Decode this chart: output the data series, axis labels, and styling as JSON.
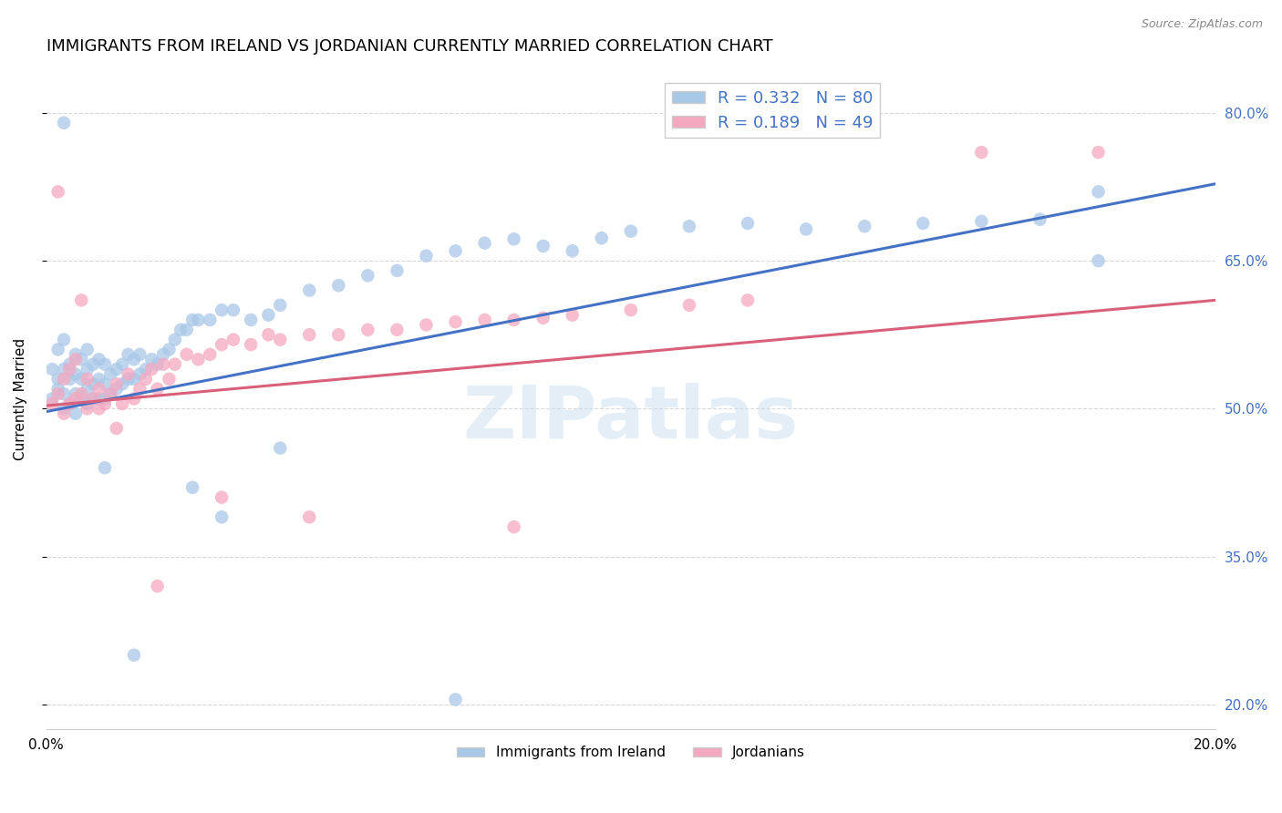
{
  "title": "IMMIGRANTS FROM IRELAND VS JORDANIAN CURRENTLY MARRIED CORRELATION CHART",
  "source": "Source: ZipAtlas.com",
  "ylabel": "Currently Married",
  "ytick_labels": [
    "20.0%",
    "35.0%",
    "50.0%",
    "65.0%",
    "80.0%"
  ],
  "ytick_values": [
    0.2,
    0.35,
    0.5,
    0.65,
    0.8
  ],
  "xlim": [
    0.0,
    0.2
  ],
  "ylim": [
    0.175,
    0.845
  ],
  "watermark": "ZIPatlas",
  "blue_color": "#a8c8e8",
  "pink_color": "#f4a8c0",
  "blue_line_color": "#4472c4",
  "pink_line_color": "#d9607a",
  "blue_line_x0": 0.0,
  "blue_line_y0": 0.497,
  "blue_line_x1": 0.2,
  "blue_line_y1": 0.728,
  "pink_line_x0": 0.0,
  "pink_line_y0": 0.503,
  "pink_line_x1": 0.2,
  "pink_line_y1": 0.61,
  "legend_label_blue": "R = 0.332   N = 80",
  "legend_label_pink": "R = 0.189   N = 49",
  "cat_label_blue": "Immigrants from Ireland",
  "cat_label_pink": "Jordanians",
  "grid_color": "#d8d8d8",
  "title_fontsize": 13,
  "axis_label_fontsize": 11,
  "tick_fontsize": 11,
  "scatter_size": 110,
  "blue_scatter_x": [
    0.001,
    0.001,
    0.002,
    0.002,
    0.002,
    0.003,
    0.003,
    0.003,
    0.003,
    0.004,
    0.004,
    0.004,
    0.005,
    0.005,
    0.005,
    0.005,
    0.006,
    0.006,
    0.006,
    0.007,
    0.007,
    0.007,
    0.007,
    0.008,
    0.008,
    0.008,
    0.009,
    0.009,
    0.009,
    0.01,
    0.01,
    0.01,
    0.011,
    0.011,
    0.012,
    0.012,
    0.013,
    0.013,
    0.014,
    0.014,
    0.015,
    0.015,
    0.016,
    0.016,
    0.017,
    0.018,
    0.019,
    0.02,
    0.021,
    0.022,
    0.023,
    0.024,
    0.025,
    0.026,
    0.028,
    0.03,
    0.032,
    0.035,
    0.038,
    0.04,
    0.045,
    0.05,
    0.055,
    0.06,
    0.065,
    0.07,
    0.075,
    0.08,
    0.085,
    0.09,
    0.095,
    0.1,
    0.11,
    0.12,
    0.13,
    0.14,
    0.15,
    0.16,
    0.17,
    0.18
  ],
  "blue_scatter_y": [
    0.51,
    0.54,
    0.52,
    0.53,
    0.56,
    0.5,
    0.515,
    0.54,
    0.57,
    0.505,
    0.53,
    0.545,
    0.495,
    0.515,
    0.535,
    0.555,
    0.51,
    0.53,
    0.55,
    0.505,
    0.52,
    0.54,
    0.56,
    0.51,
    0.525,
    0.545,
    0.51,
    0.53,
    0.55,
    0.51,
    0.525,
    0.545,
    0.515,
    0.535,
    0.52,
    0.54,
    0.525,
    0.545,
    0.53,
    0.555,
    0.53,
    0.55,
    0.535,
    0.555,
    0.54,
    0.55,
    0.545,
    0.555,
    0.56,
    0.57,
    0.58,
    0.58,
    0.59,
    0.59,
    0.59,
    0.6,
    0.6,
    0.59,
    0.595,
    0.605,
    0.62,
    0.625,
    0.635,
    0.64,
    0.655,
    0.66,
    0.668,
    0.672,
    0.665,
    0.66,
    0.673,
    0.68,
    0.685,
    0.688,
    0.682,
    0.685,
    0.688,
    0.69,
    0.692,
    0.72
  ],
  "blue_outliers_x": [
    0.003,
    0.07,
    0.18,
    0.015,
    0.03,
    0.01,
    0.025,
    0.04
  ],
  "blue_outliers_y": [
    0.79,
    0.205,
    0.65,
    0.25,
    0.39,
    0.44,
    0.42,
    0.46
  ],
  "pink_scatter_x": [
    0.001,
    0.002,
    0.003,
    0.003,
    0.004,
    0.004,
    0.005,
    0.005,
    0.006,
    0.007,
    0.007,
    0.008,
    0.009,
    0.009,
    0.01,
    0.011,
    0.012,
    0.013,
    0.014,
    0.015,
    0.016,
    0.017,
    0.018,
    0.019,
    0.02,
    0.021,
    0.022,
    0.024,
    0.026,
    0.028,
    0.03,
    0.032,
    0.035,
    0.038,
    0.04,
    0.045,
    0.05,
    0.055,
    0.06,
    0.065,
    0.07,
    0.075,
    0.08,
    0.085,
    0.09,
    0.1,
    0.11,
    0.12,
    0.18
  ],
  "pink_scatter_y": [
    0.505,
    0.515,
    0.495,
    0.53,
    0.505,
    0.54,
    0.51,
    0.55,
    0.515,
    0.5,
    0.53,
    0.51,
    0.5,
    0.52,
    0.505,
    0.515,
    0.525,
    0.505,
    0.535,
    0.51,
    0.52,
    0.53,
    0.54,
    0.52,
    0.545,
    0.53,
    0.545,
    0.555,
    0.55,
    0.555,
    0.565,
    0.57,
    0.565,
    0.575,
    0.57,
    0.575,
    0.575,
    0.58,
    0.58,
    0.585,
    0.588,
    0.59,
    0.59,
    0.592,
    0.595,
    0.6,
    0.605,
    0.61,
    0.76
  ],
  "pink_outliers_x": [
    0.002,
    0.006,
    0.012,
    0.019,
    0.03,
    0.045,
    0.08,
    0.16
  ],
  "pink_outliers_y": [
    0.72,
    0.61,
    0.48,
    0.32,
    0.41,
    0.39,
    0.38,
    0.76
  ]
}
